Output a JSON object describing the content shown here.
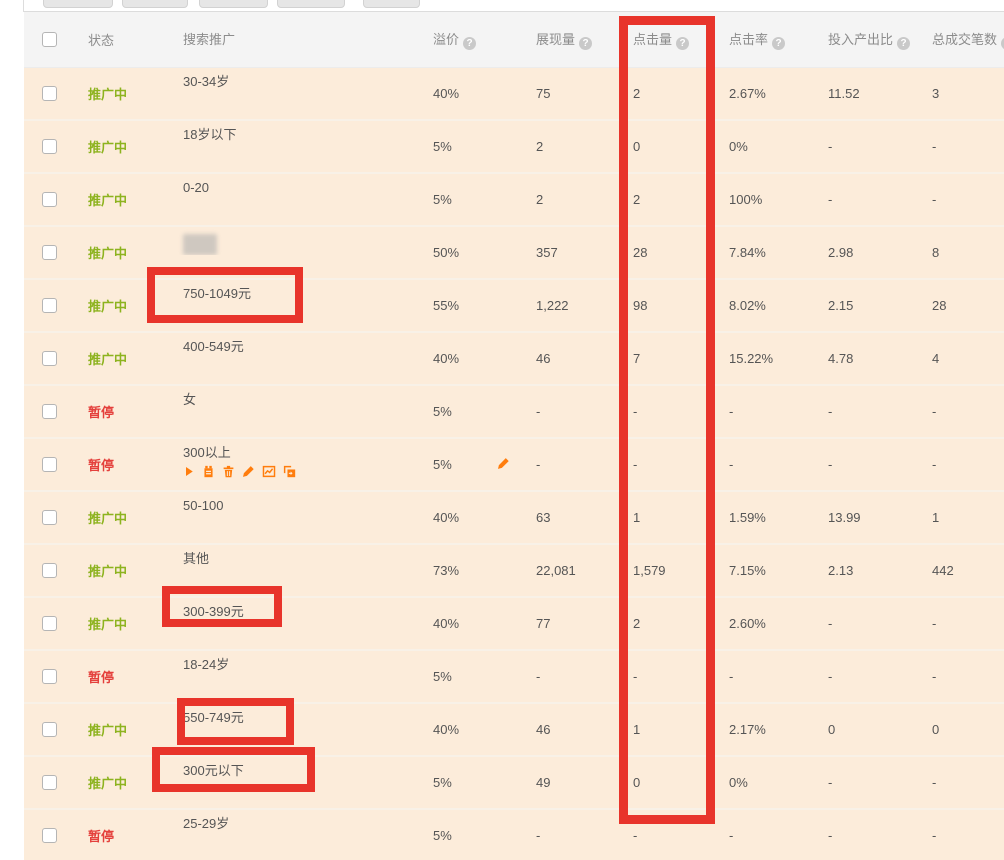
{
  "header": {
    "select_all": true,
    "columns": [
      {
        "key": "status",
        "label": "状态",
        "has_help": false
      },
      {
        "key": "label",
        "label": "搜索推广",
        "has_help": false
      },
      {
        "key": "premium",
        "label": "溢价",
        "has_help": true
      },
      {
        "key": "impressions",
        "label": "展现量",
        "has_help": true
      },
      {
        "key": "clicks",
        "label": "点击量",
        "has_help": true
      },
      {
        "key": "ctr",
        "label": "点击率",
        "has_help": true
      },
      {
        "key": "roi",
        "label": "投入产出比",
        "has_help": true
      },
      {
        "key": "orders",
        "label": "总成交笔数",
        "has_help": true
      }
    ]
  },
  "rows": [
    {
      "status": "推广中",
      "state": "active",
      "label": "30-34岁",
      "premium": "40%",
      "impressions": "75",
      "clicks": "2",
      "ctr": "2.67%",
      "roi": "11.52",
      "orders": "3"
    },
    {
      "status": "推广中",
      "state": "active",
      "label": "18岁以下",
      "premium": "5%",
      "impressions": "2",
      "clicks": "0",
      "ctr": "0%",
      "roi": "-",
      "orders": "-"
    },
    {
      "status": "推广中",
      "state": "active",
      "label": "0-20",
      "premium": "5%",
      "impressions": "2",
      "clicks": "2",
      "ctr": "100%",
      "roi": "-",
      "orders": "-"
    },
    {
      "status": "推广中",
      "state": "active",
      "label": "",
      "blurred": true,
      "premium": "50%",
      "impressions": "357",
      "clicks": "28",
      "ctr": "7.84%",
      "roi": "2.98",
      "orders": "8"
    },
    {
      "status": "推广中",
      "state": "active",
      "label": "750-1049元",
      "premium": "55%",
      "impressions": "1,222",
      "clicks": "98",
      "ctr": "8.02%",
      "roi": "2.15",
      "orders": "28"
    },
    {
      "status": "推广中",
      "state": "active",
      "label": "400-549元",
      "premium": "40%",
      "impressions": "46",
      "clicks": "7",
      "ctr": "15.22%",
      "roi": "4.78",
      "orders": "4"
    },
    {
      "status": "暂停",
      "state": "paused",
      "label": "女",
      "premium": "5%",
      "impressions": "-",
      "clicks": "-",
      "ctr": "-",
      "roi": "-",
      "orders": "-"
    },
    {
      "status": "暂停",
      "state": "paused",
      "label": "300以上",
      "premium": "5%",
      "impressions": "-",
      "clicks": "-",
      "ctr": "-",
      "roi": "-",
      "orders": "-",
      "hover_icons": true,
      "premium_editable": true
    },
    {
      "status": "推广中",
      "state": "active",
      "label": "50-100",
      "premium": "40%",
      "impressions": "63",
      "clicks": "1",
      "ctr": "1.59%",
      "roi": "13.99",
      "orders": "1"
    },
    {
      "status": "推广中",
      "state": "active",
      "label": "其他",
      "premium": "73%",
      "impressions": "22,081",
      "clicks": "1,579",
      "ctr": "7.15%",
      "roi": "2.13",
      "orders": "442"
    },
    {
      "status": "推广中",
      "state": "active",
      "label": "300-399元",
      "premium": "40%",
      "impressions": "77",
      "clicks": "2",
      "ctr": "2.60%",
      "roi": "-",
      "orders": "-"
    },
    {
      "status": "暂停",
      "state": "paused",
      "label": "18-24岁",
      "premium": "5%",
      "impressions": "-",
      "clicks": "-",
      "ctr": "-",
      "roi": "-",
      "orders": "-"
    },
    {
      "status": "推广中",
      "state": "active",
      "label": "550-749元",
      "premium": "40%",
      "impressions": "46",
      "clicks": "1",
      "ctr": "2.17%",
      "roi": "0",
      "orders": "0"
    },
    {
      "status": "推广中",
      "state": "active",
      "label": "300元以下",
      "premium": "5%",
      "impressions": "49",
      "clicks": "0",
      "ctr": "0%",
      "roi": "-",
      "orders": "-"
    },
    {
      "status": "暂停",
      "state": "paused",
      "label": "25-29岁",
      "premium": "5%",
      "impressions": "-",
      "clicks": "-",
      "ctr": "-",
      "roi": "-",
      "orders": "-"
    }
  ],
  "row_action_icons": [
    {
      "name": "play-icon"
    },
    {
      "name": "budget-icon"
    },
    {
      "name": "trash-icon"
    },
    {
      "name": "edit-icon"
    },
    {
      "name": "chart-icon"
    },
    {
      "name": "copy-icon"
    }
  ],
  "annotations": {
    "color": "#e8342b",
    "column_highlight": "点击量",
    "highlighted_labels": [
      "750-1049元",
      "300-399元",
      "550-749元",
      "300元以下"
    ]
  },
  "colors": {
    "row_background": "#fcecda",
    "status_active": "#8db31f",
    "status_paused": "#e4403c",
    "action_icon_orange": "#ff7d0d"
  }
}
